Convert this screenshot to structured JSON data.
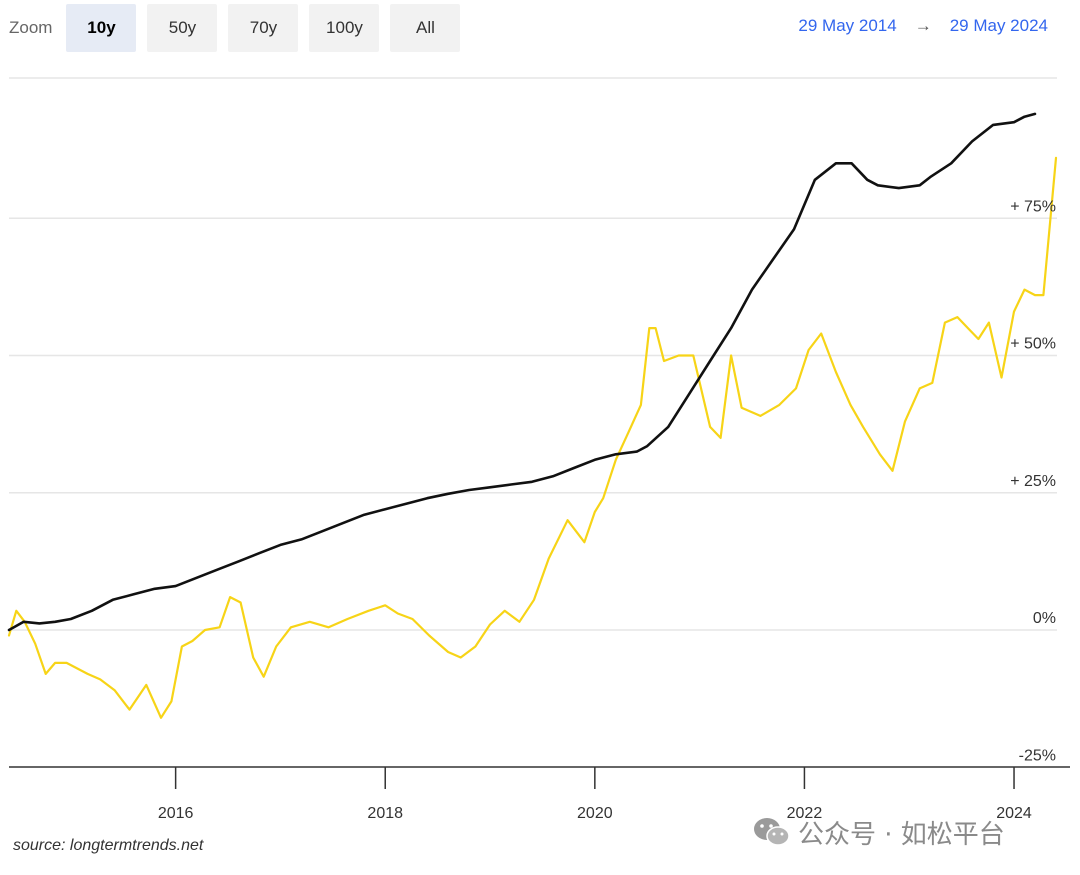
{
  "toolbar": {
    "zoom_label": "Zoom",
    "buttons": [
      {
        "label": "10y",
        "active": true
      },
      {
        "label": "50y",
        "active": false
      },
      {
        "label": "70y",
        "active": false
      },
      {
        "label": "100y",
        "active": false
      },
      {
        "label": "All",
        "active": false
      }
    ]
  },
  "range": {
    "from": "29 May 2014",
    "arrow": "→",
    "to": "29 May 2024"
  },
  "source": "source: longtermtrends.net",
  "watermark": {
    "text": "公众号 · 如松平台",
    "icon": "wechat-icon"
  },
  "colors": {
    "black_series": "#111111",
    "yellow_series": "#f7d417",
    "grid": "#e6e6e6",
    "axis": "#333333"
  },
  "chart_data": {
    "type": "line",
    "title": "",
    "xlabel": "",
    "ylabel": "",
    "xlim": [
      2014.41,
      2024.41
    ],
    "ylim": [
      -25,
      100
    ],
    "grid": true,
    "legend": "none",
    "xticks": [
      {
        "value": 2016,
        "label": "2016"
      },
      {
        "value": 2018,
        "label": "2018"
      },
      {
        "value": 2020,
        "label": "2020"
      },
      {
        "value": 2022,
        "label": "2022"
      },
      {
        "value": 2024,
        "label": "2024"
      }
    ],
    "yticks": [
      {
        "value": 75,
        "label": "+ 75%"
      },
      {
        "value": 50,
        "label": "+ 50%"
      },
      {
        "value": 25,
        "label": "+ 25%"
      },
      {
        "value": 0,
        "label": "0%"
      },
      {
        "value": -25,
        "label": "-25%"
      }
    ],
    "series": [
      {
        "color": "#111111",
        "x": [
          2014.41,
          2014.55,
          2014.7,
          2014.85,
          2015.0,
          2015.2,
          2015.4,
          2015.6,
          2015.8,
          2016.0,
          2016.2,
          2016.4,
          2016.6,
          2016.8,
          2017.0,
          2017.2,
          2017.4,
          2017.6,
          2017.8,
          2018.0,
          2018.2,
          2018.4,
          2018.6,
          2018.8,
          2019.0,
          2019.2,
          2019.4,
          2019.6,
          2019.8,
          2020.0,
          2020.2,
          2020.4,
          2020.5,
          2020.7,
          2020.9,
          2021.1,
          2021.3,
          2021.5,
          2021.7,
          2021.9,
          2022.1,
          2022.3,
          2022.45,
          2022.6,
          2022.7,
          2022.9,
          2023.1,
          2023.2,
          2023.4,
          2023.6,
          2023.8,
          2024.0,
          2024.1,
          2024.2
        ],
        "y": [
          0.0,
          1.5,
          1.2,
          1.5,
          2.0,
          3.5,
          5.5,
          6.5,
          7.5,
          8.0,
          9.5,
          11.0,
          12.5,
          14.0,
          15.5,
          16.5,
          18.0,
          19.5,
          21.0,
          22.0,
          23.0,
          24.0,
          24.8,
          25.5,
          26.0,
          26.5,
          27.0,
          28.0,
          29.5,
          31.0,
          32.0,
          32.5,
          33.5,
          37.0,
          43.0,
          49.0,
          55.0,
          62.0,
          67.5,
          73.0,
          82.0,
          85.0,
          85.0,
          82.0,
          81.0,
          80.5,
          81.0,
          82.5,
          85.0,
          89.0,
          92.0,
          92.5,
          93.5,
          94.0
        ]
      },
      {
        "color": "#f7d417",
        "x": [
          2014.41,
          2014.48,
          2014.56,
          2014.66,
          2014.76,
          2014.85,
          2014.96,
          2015.06,
          2015.16,
          2015.28,
          2015.42,
          2015.56,
          2015.72,
          2015.86,
          2015.96,
          2016.06,
          2016.16,
          2016.28,
          2016.42,
          2016.52,
          2016.62,
          2016.74,
          2016.84,
          2016.96,
          2017.1,
          2017.28,
          2017.46,
          2017.64,
          2017.84,
          2018.0,
          2018.12,
          2018.26,
          2018.42,
          2018.6,
          2018.72,
          2018.86,
          2019.0,
          2019.14,
          2019.28,
          2019.42,
          2019.56,
          2019.74,
          2019.9,
          2020.0,
          2020.08,
          2020.2,
          2020.32,
          2020.44,
          2020.52,
          2020.58,
          2020.66,
          2020.8,
          2020.94,
          2021.1,
          2021.2,
          2021.3,
          2021.4,
          2021.58,
          2021.76,
          2021.92,
          2022.04,
          2022.16,
          2022.3,
          2022.44,
          2022.56,
          2022.72,
          2022.84,
          2022.96,
          2023.1,
          2023.22,
          2023.34,
          2023.46,
          2023.56,
          2023.66,
          2023.76,
          2023.88,
          2024.0,
          2024.1,
          2024.2,
          2024.28,
          2024.4
        ],
        "y": [
          -1.0,
          3.5,
          1.5,
          -2.5,
          -8.0,
          -6.0,
          -6.0,
          -7.0,
          -8.0,
          -9.0,
          -11.0,
          -14.5,
          -10.0,
          -16.0,
          -13.0,
          -3.0,
          -2.0,
          0.0,
          0.5,
          6.0,
          5.0,
          -5.0,
          -8.5,
          -3.0,
          0.5,
          1.5,
          0.5,
          2.0,
          3.5,
          4.5,
          3.0,
          2.0,
          -1.0,
          -4.0,
          -5.0,
          -3.0,
          1.0,
          3.5,
          1.5,
          5.5,
          13.0,
          20.0,
          16.0,
          21.5,
          24.0,
          31.0,
          36.0,
          41.0,
          55.0,
          55.0,
          49.0,
          50.0,
          50.0,
          37.0,
          35.0,
          50.0,
          40.5,
          39.0,
          41.0,
          44.0,
          51.0,
          54.0,
          47.0,
          41.0,
          37.0,
          32.0,
          29.0,
          38.0,
          44.0,
          45.0,
          56.0,
          57.0,
          55.0,
          53.0,
          56.0,
          46.0,
          58.0,
          62.0,
          61.0,
          61.0,
          86.0
        ]
      }
    ]
  }
}
